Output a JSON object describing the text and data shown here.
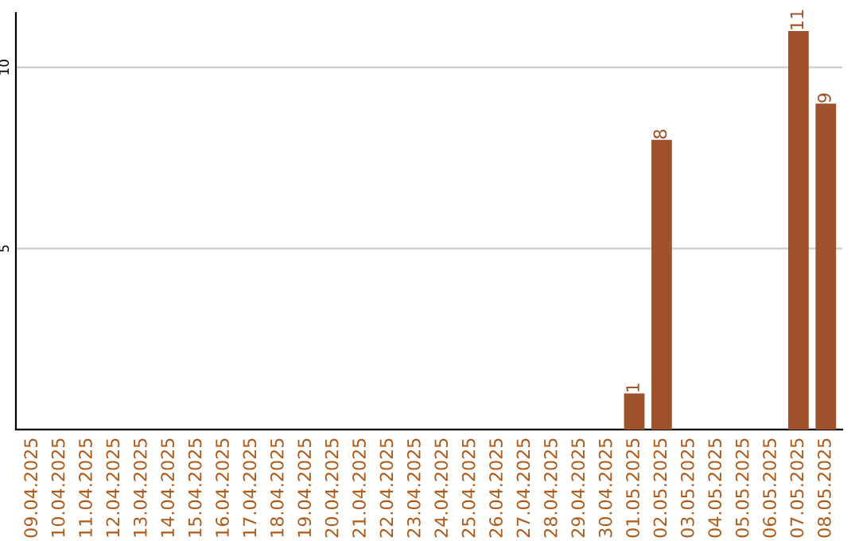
{
  "chart_data": {
    "type": "bar",
    "categories": [
      "09.04.2025",
      "10.04.2025",
      "11.04.2025",
      "12.04.2025",
      "13.04.2025",
      "14.04.2025",
      "15.04.2025",
      "16.04.2025",
      "17.04.2025",
      "18.04.2025",
      "19.04.2025",
      "20.04.2025",
      "21.04.2025",
      "22.04.2025",
      "23.04.2025",
      "24.04.2025",
      "25.04.2025",
      "26.04.2025",
      "27.04.2025",
      "28.04.2025",
      "29.04.2025",
      "30.04.2025",
      "01.05.2025",
      "02.05.2025",
      "03.05.2025",
      "04.05.2025",
      "05.05.2025",
      "06.05.2025",
      "07.05.2025",
      "08.05.2025"
    ],
    "values": [
      0,
      0,
      0,
      0,
      0,
      0,
      0,
      0,
      0,
      0,
      0,
      0,
      0,
      0,
      0,
      0,
      0,
      0,
      0,
      0,
      0,
      0,
      1,
      8,
      0,
      0,
      0,
      0,
      11,
      9
    ],
    "value_labels": [
      null,
      null,
      null,
      null,
      null,
      null,
      null,
      null,
      null,
      null,
      null,
      null,
      null,
      null,
      null,
      null,
      null,
      null,
      null,
      null,
      null,
      null,
      "1",
      "8",
      null,
      null,
      null,
      null,
      "11",
      "9"
    ],
    "color": "#a0522d",
    "ylim": [
      0,
      11.5
    ],
    "yticks": [
      5,
      10
    ],
    "grid": "y"
  }
}
